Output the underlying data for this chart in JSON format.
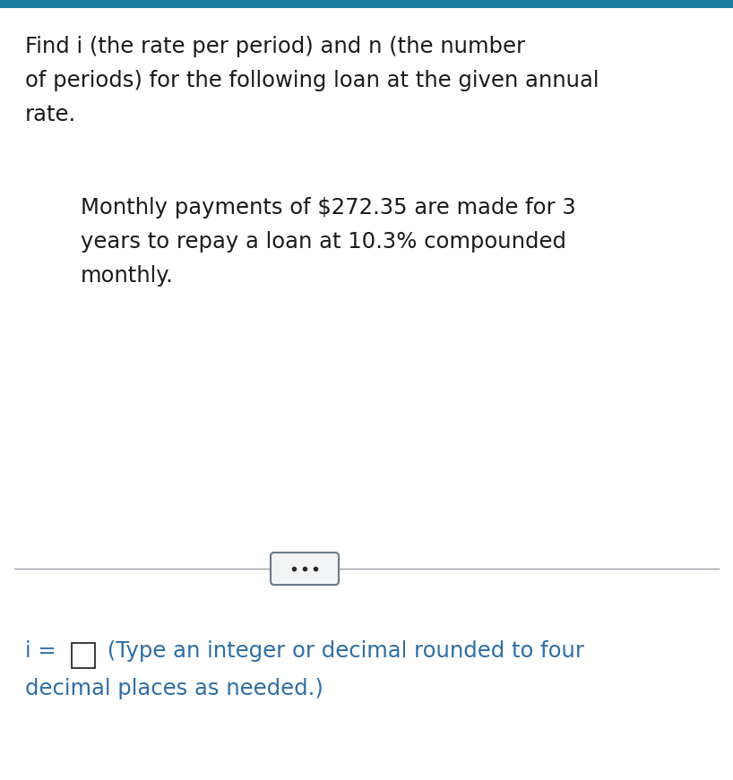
{
  "top_bar_color": "#1a7fa0",
  "bg_color": "#e8e8e8",
  "main_bg_color": "#ffffff",
  "title_text_line1": "Find i (the rate per period) and n (the number",
  "title_text_line2": "of periods) for the following loan at the given annual",
  "title_text_line3": "rate.",
  "body_text_line1": "Monthly payments of $272.35 are made for 3",
  "body_text_line2": "years to repay a loan at 10.3% compounded",
  "body_text_line3": "monthly.",
  "answer_line1_suffix": " (Type an integer or decimal rounded to four",
  "answer_line2": "decimal places as needed.)",
  "text_color_black": "#1a1a1a",
  "text_color_blue": "#2e6da4",
  "separator_line_color": "#9aa0a8",
  "dots_button_bg": "#f2f3f4",
  "dots_button_border": "#6a7a8a",
  "title_fontsize": 17.5,
  "body_fontsize": 17.5,
  "answer_fontsize": 17.5
}
